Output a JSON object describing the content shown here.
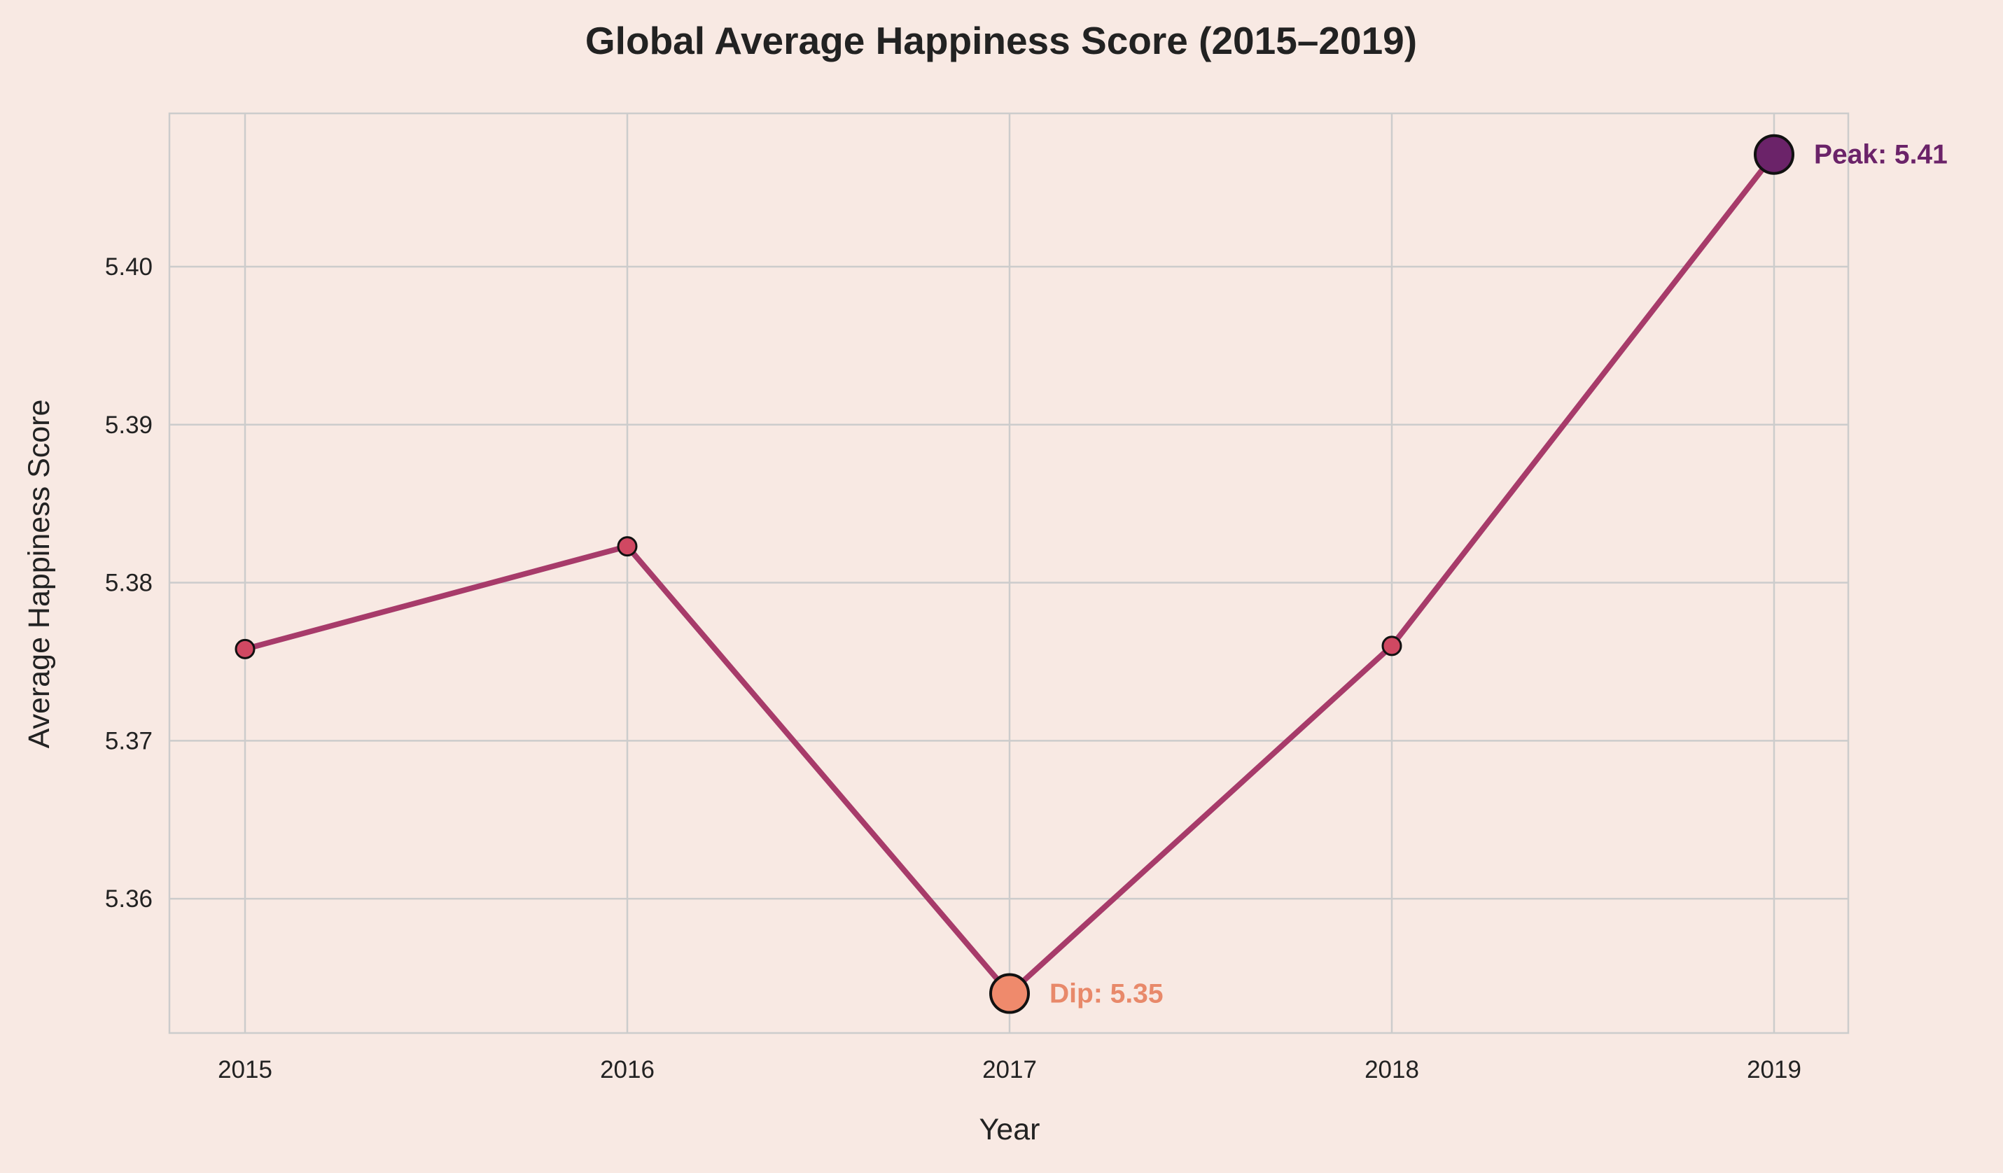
{
  "chart_data": {
    "type": "line",
    "title": "Global Average Happiness Score (2015–2019)",
    "xlabel": "Year",
    "ylabel": "Average Happiness Score",
    "x": [
      "2015",
      "2016",
      "2017",
      "2018",
      "2019"
    ],
    "series": [
      {
        "values": [
          5.3758,
          5.3823,
          5.354,
          5.376,
          5.4071
        ]
      }
    ],
    "ylim": [
      5.3515,
      5.4097
    ],
    "yticks": [
      "5.36",
      "5.37",
      "5.38",
      "5.39",
      "5.40"
    ],
    "grid": true,
    "annotations": [
      {
        "text": "Peak: 5.41",
        "x": "2019",
        "value": 5.4071,
        "color": "#6b2369"
      },
      {
        "text": "Dip: 5.35",
        "x": "2017",
        "value": 5.354,
        "color": "#e8896a"
      }
    ],
    "colors": {
      "background": "#f8e9e3",
      "line": "#a73b6a",
      "marker": "#d04862",
      "peak_marker": "#6b2369",
      "dip_marker": "#ef8a6c",
      "grid": "#cccccc"
    }
  }
}
